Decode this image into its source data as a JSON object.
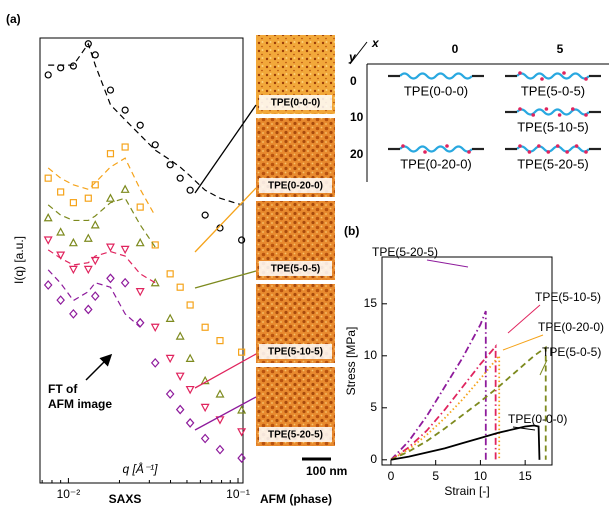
{
  "panel_a_label": "(a)",
  "panel_b_label": "(b)",
  "footer": {
    "saxs": "SAXS",
    "afm": "AFM (phase)"
  },
  "scale_bar": "100 nm",
  "schematic": {
    "x_label": "x",
    "y_label": "y",
    "columns": [
      "0",
      "5"
    ],
    "rows": [
      {
        "y": "0",
        "cells": [
          "TPE(0-0-0)",
          "TPE(5-0-5)"
        ]
      },
      {
        "y": "10",
        "cells": [
          null,
          "TPE(5-10-5)"
        ]
      },
      {
        "y": "20",
        "cells": [
          "TPE(0-20-0)",
          "TPE(5-20-5)"
        ]
      }
    ]
  },
  "chart_data": [
    {
      "type": "line",
      "xscale": "log",
      "xlabel": "q [Å⁻¹]",
      "ylabel": "I(q) [a.u.]",
      "annotation_lines": [
        "FT of",
        "AFM image"
      ],
      "xlim": [
        0.0068,
        0.107
      ],
      "ylim": [
        0,
        100
      ],
      "xticks": [
        {
          "value": 0.01,
          "label": "10⁻²"
        },
        {
          "value": 0.1,
          "label": "10⁻¹"
        }
      ],
      "x": [
        0.0076,
        0.009,
        0.0107,
        0.0131,
        0.0144,
        0.0177,
        0.0216,
        0.0265,
        0.0325,
        0.0398,
        0.0456,
        0.0522,
        0.064,
        0.0783,
        0.105
      ],
      "series": [
        {
          "name": "TPE(0-0-0)",
          "color": "#000000",
          "style": "markers",
          "marker": "circle",
          "values": [
            91.7,
            93.3,
            93.7,
            98.7,
            96.2,
            88.3,
            83.8,
            80.4,
            76,
            71.5,
            68.5,
            65.8,
            60.2,
            57.3,
            54.6
          ]
        },
        {
          "color": "#000000",
          "style": "dashed",
          "values": [
            93.9,
            93.9,
            93.9,
            98.7,
            93.9,
            85,
            81.6,
            78.2,
            74.8,
            72.6,
            71,
            69,
            65.8,
            64,
            62.5
          ]
        },
        {
          "name": "TPE(0-20-0)",
          "color": "#f5a31a",
          "style": "markers",
          "marker": "square",
          "values": [
            68.5,
            65.4,
            63,
            64,
            67,
            74,
            75.5,
            62,
            53.5,
            47,
            44,
            40,
            35,
            32,
            29.4
          ]
        },
        {
          "color": "#f5a31a",
          "style": "dashed",
          "values": [
            70.8,
            68.5,
            67,
            66,
            67.5,
            71,
            73,
            66,
            60,
            null,
            null,
            null,
            null,
            null,
            null
          ]
        },
        {
          "name": "TPE(5-0-5)",
          "color": "#7d8a1e",
          "style": "markers",
          "marker": "triangle-up",
          "values": [
            59.6,
            56.4,
            54,
            55,
            58,
            64,
            66,
            54,
            45,
            37,
            33,
            28,
            23,
            20,
            16.4
          ]
        },
        {
          "color": "#7d8a1e",
          "style": "dashed",
          "values": [
            62.5,
            60.2,
            59,
            59,
            60,
            63,
            64,
            58,
            53,
            null,
            null,
            null,
            null,
            null,
            null
          ]
        },
        {
          "name": "TPE(5-10-5)",
          "color": "#e0245e",
          "style": "markers",
          "marker": "triangle-down",
          "values": [
            54.6,
            51.2,
            48,
            48,
            50,
            53,
            52.5,
            43,
            35,
            28,
            24,
            21,
            17,
            14.2,
            11.5
          ]
        },
        {
          "color": "#e0245e",
          "style": "dashed",
          "values": [
            52.4,
            50.5,
            49,
            49.5,
            51,
            52,
            51,
            47,
            45,
            null,
            null,
            null,
            null,
            null,
            null
          ]
        },
        {
          "name": "TPE(5-20-5)",
          "color": "#8e1b9c",
          "style": "markers",
          "marker": "diamond",
          "values": [
            44.5,
            41.1,
            38,
            39,
            42,
            46,
            45,
            36,
            27,
            20,
            16.5,
            13.5,
            10,
            7.5,
            5.6
          ]
        },
        {
          "color": "#8e1b9c",
          "style": "dashed",
          "values": [
            47.9,
            44.9,
            41,
            43,
            45,
            44,
            38,
            35,
            null,
            null,
            null,
            null,
            null,
            null,
            null
          ]
        }
      ]
    },
    {
      "type": "line",
      "xlabel": "Strain [-]",
      "ylabel": "Stress [MPa]",
      "xlim": [
        -1,
        18
      ],
      "ylim": [
        -0.5,
        19.5
      ],
      "xticks": [
        0,
        5,
        10,
        15
      ],
      "yticks": [
        0,
        5,
        10,
        15
      ],
      "series": [
        {
          "name": "TPE(5-20-5)",
          "color": "#8e1b9c",
          "style": "dashdot",
          "x": [
            0,
            2,
            4,
            6,
            8,
            10,
            10.6,
            10.6
          ],
          "values": [
            0,
            1.8,
            4.2,
            7,
            9.8,
            13,
            14.3,
            0
          ]
        },
        {
          "name": "TPE(5-10-5)",
          "color": "#e0245e",
          "style": "dashdot",
          "x": [
            0,
            2,
            4,
            6,
            8,
            10,
            11.7,
            11.7
          ],
          "values": [
            0,
            1.2,
            2.8,
            4.8,
            7,
            9.2,
            10.9,
            0
          ]
        },
        {
          "name": "TPE(0-20-0)",
          "color": "#f5a31a",
          "style": "dotted",
          "x": [
            0,
            2,
            4,
            6,
            8,
            10,
            12.1,
            12.1
          ],
          "values": [
            0,
            1,
            2.4,
            4,
            5.8,
            7.8,
            10,
            0
          ]
        },
        {
          "name": "TPE(5-0-5)",
          "color": "#7d8a1e",
          "style": "dashed",
          "x": [
            0,
            2,
            4,
            6,
            8,
            10,
            12,
            14,
            16,
            17.3,
            17.3
          ],
          "values": [
            0,
            0.8,
            1.8,
            3,
            4.3,
            5.6,
            7,
            8.5,
            10,
            10.8,
            0
          ]
        },
        {
          "name": "TPE(0-0-0)",
          "color": "#000000",
          "style": "solid",
          "x": [
            0,
            2,
            4,
            6,
            8,
            10,
            12,
            14,
            15,
            16,
            16.5,
            16.6
          ],
          "values": [
            0,
            0.3,
            0.7,
            1.1,
            1.6,
            2.1,
            2.6,
            3,
            3.2,
            3.3,
            3.2,
            0
          ]
        }
      ]
    }
  ]
}
